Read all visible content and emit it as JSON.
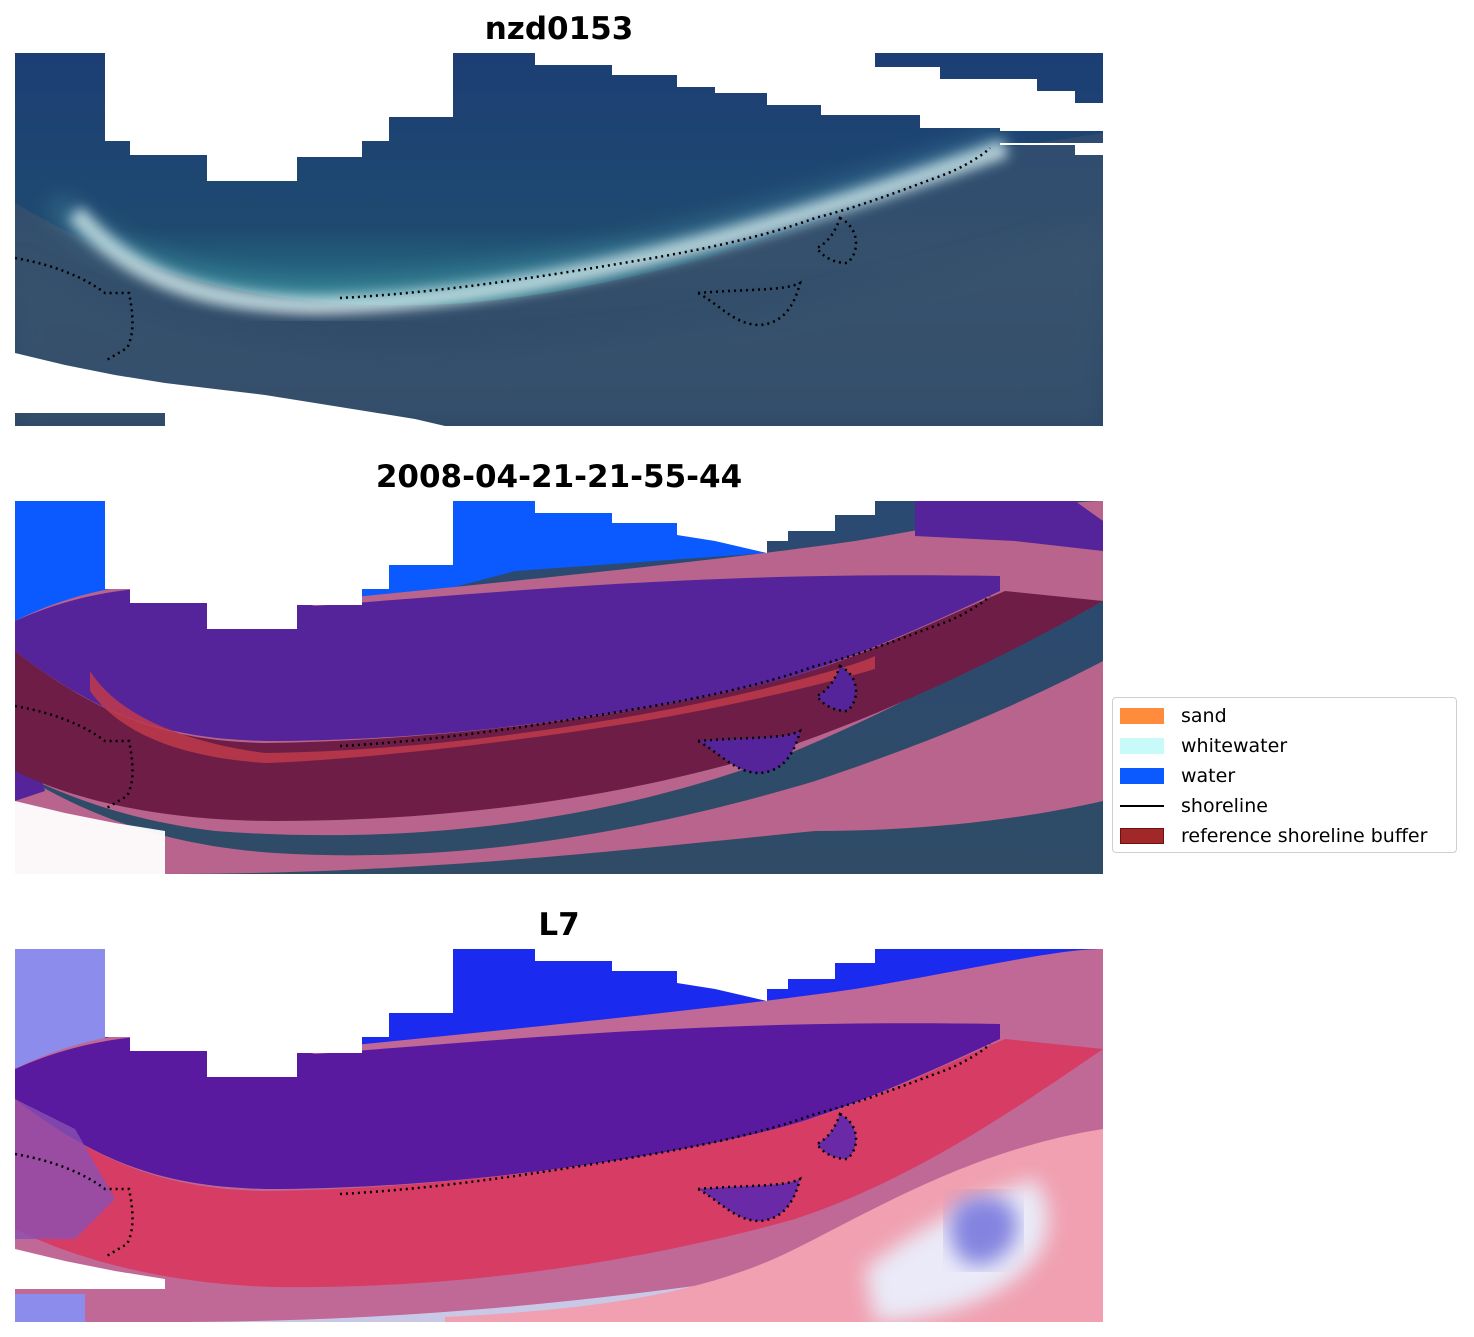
{
  "panels": [
    {
      "title": "nzd0153"
    },
    {
      "title": "2008-04-21-21-55-44"
    },
    {
      "title": "L7"
    }
  ],
  "legend": {
    "items": [
      {
        "label": "sand",
        "color": "#ff8c3c",
        "kind": "patch"
      },
      {
        "label": "whitewater",
        "color": "#c8fafa",
        "kind": "patch"
      },
      {
        "label": "water",
        "color": "#0a5aff",
        "kind": "patch"
      },
      {
        "label": "shoreline",
        "color": "#000000",
        "kind": "line"
      },
      {
        "label": "reference shoreline buffer",
        "color": "#a02828",
        "kind": "patch"
      }
    ]
  },
  "colors": {
    "imagery_background": "#2c4a6e",
    "offshore_water": "#1f3f72",
    "beach_white": "#e6eef0",
    "water_class_overlay": "#0a5aff",
    "buffer_overlay": "#b8648c",
    "buffer_dark": "#6e1e46",
    "index_water_purple": "#5a1a9c",
    "index_land_red": "#d03a5c"
  }
}
